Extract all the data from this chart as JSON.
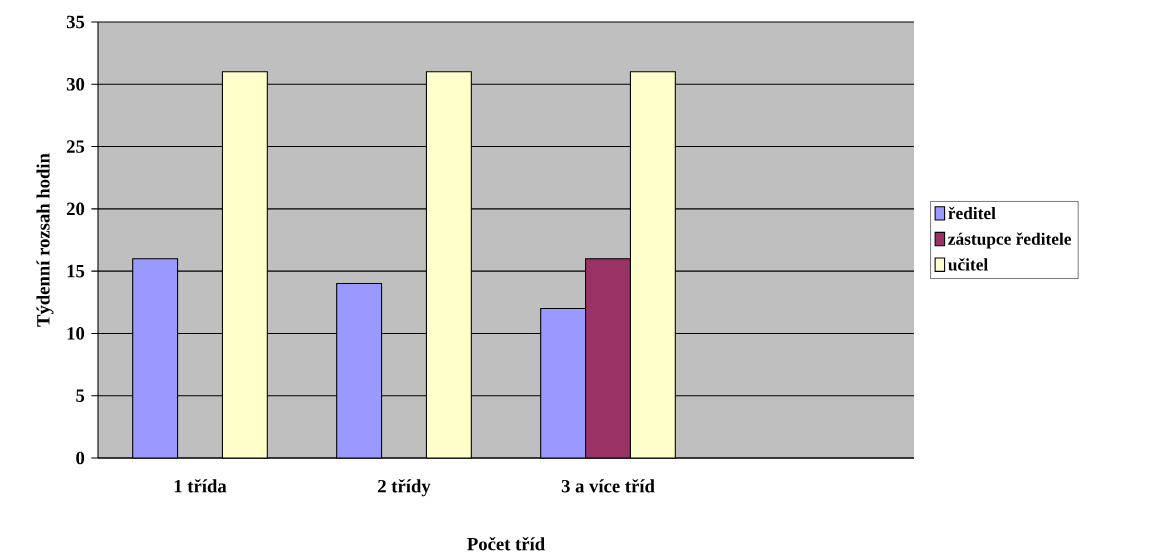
{
  "chart_data": {
    "type": "bar",
    "xlabel": "Počet tříd",
    "ylabel": "Týdenní rozsah hodin",
    "categories": [
      "1 třída",
      "2 třídy",
      "3 a více tříd",
      null
    ],
    "series": [
      {
        "name": "ředitel",
        "color": "#9999ff",
        "values": [
          16,
          14,
          12,
          null
        ]
      },
      {
        "name": "zástupce ředitele",
        "color": "#993366",
        "values": [
          null,
          null,
          16,
          null
        ]
      },
      {
        "name": "učitel",
        "color": "#ffffcc",
        "values": [
          31,
          31,
          31,
          null
        ]
      }
    ],
    "ylim": [
      0,
      35
    ],
    "yticks": [
      0,
      5,
      10,
      15,
      20,
      25,
      30,
      35
    ],
    "grid": "y",
    "legend": "right"
  }
}
